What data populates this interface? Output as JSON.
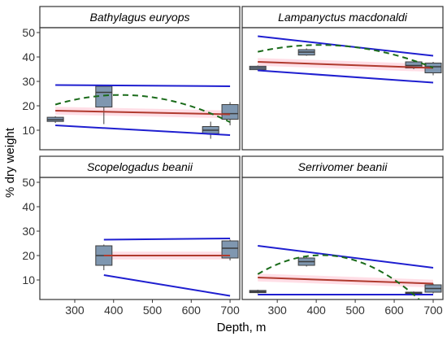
{
  "chart_data": {
    "type": "box",
    "layout": "facet-grid-2x2",
    "xlabel": "Depth, m",
    "ylabel": "% dry weight",
    "shared_axes": true,
    "xlim": [
      210,
      725
    ],
    "ylim": [
      2,
      52
    ],
    "xticks": [
      300,
      400,
      500,
      600,
      700
    ],
    "yticks": [
      10,
      20,
      30,
      40,
      50
    ],
    "colors": {
      "box_fill": "#7f97b0",
      "box_edge": "#3c3c3c",
      "envelope": "#1f1fd0",
      "linear_fit": "#b03a2e",
      "linear_band": "#ffd6e0",
      "quadratic_fit": "#1a6b1a",
      "strip_fill": "#ffffff",
      "axis": "#333333"
    },
    "panels": [
      {
        "title": "Bathylagus euryops",
        "boxes": [
          {
            "depth": 250,
            "q1": 13.6,
            "median": 14.3,
            "q3": 15.3,
            "whisker_low": 13.0,
            "whisker_high": 15.7
          },
          {
            "depth": 375,
            "q1": 19.5,
            "median": 25.5,
            "q3": 28.0,
            "whisker_low": 12.5,
            "whisker_high": 28.0
          },
          {
            "depth": 650,
            "q1": 8.6,
            "median": 10.0,
            "q3": 11.5,
            "whisker_low": 6.5,
            "whisker_high": 13.5
          },
          {
            "depth": 700,
            "q1": 14.5,
            "median": 16.8,
            "q3": 20.5,
            "whisker_low": 12.0,
            "whisker_high": 21.5
          }
        ],
        "envelope_upper": [
          [
            250,
            28.5
          ],
          [
            700,
            28.0
          ]
        ],
        "envelope_lower": [
          [
            250,
            12.0
          ],
          [
            700,
            8.0
          ]
        ],
        "linear_fit": [
          [
            250,
            18.0
          ],
          [
            700,
            16.5
          ]
        ],
        "quadratic_fit": {
          "a": -0.00015,
          "b": 0.117,
          "c": -0.00014
        }
      },
      {
        "title": "Lampanyctus macdonaldi",
        "boxes": [
          {
            "depth": 250,
            "q1": 34.8,
            "median": 35.5,
            "q3": 36.2,
            "whisker_low": 34.5,
            "whisker_high": 36.5
          },
          {
            "depth": 375,
            "q1": 40.8,
            "median": 42.0,
            "q3": 43.0,
            "whisker_low": 40.5,
            "whisker_high": 43.5
          },
          {
            "depth": 650,
            "q1": 35.5,
            "median": 36.5,
            "q3": 38.0,
            "whisker_low": 35.0,
            "whisker_high": 38.5
          },
          {
            "depth": 700,
            "q1": 33.5,
            "median": 36.0,
            "q3": 37.5,
            "whisker_low": 32.5,
            "whisker_high": 38.0
          }
        ],
        "envelope_upper": [
          [
            250,
            48.5
          ],
          [
            700,
            40.5
          ]
        ],
        "envelope_lower": [
          [
            250,
            34.5
          ],
          [
            700,
            29.5
          ]
        ],
        "linear_fit": [
          [
            250,
            38.0
          ],
          [
            700,
            35.5
          ]
        ],
        "quadratic_fit": {
          "a": 26.5,
          "b": 0.09,
          "c": -0.00011
        }
      },
      {
        "title": "Scopelogadus beanii",
        "boxes": [
          {
            "depth": 375,
            "q1": 16.0,
            "median": 20.0,
            "q3": 24.0,
            "whisker_low": 14.0,
            "whisker_high": 24.5
          },
          {
            "depth": 700,
            "q1": 19.0,
            "median": 23.0,
            "q3": 26.0,
            "whisker_low": 18.0,
            "whisker_high": 26.5
          }
        ],
        "envelope_upper": [
          [
            375,
            26.5
          ],
          [
            700,
            27.0
          ]
        ],
        "envelope_lower": [
          [
            375,
            12.0
          ],
          [
            700,
            3.5
          ]
        ],
        "linear_fit": [
          [
            375,
            20.0
          ],
          [
            700,
            20.0
          ]
        ],
        "quadratic_fit": null
      },
      {
        "title": "Serrivomer beanii",
        "boxes": [
          {
            "depth": 250,
            "q1": 4.8,
            "median": 5.2,
            "q3": 5.7,
            "whisker_low": 4.5,
            "whisker_high": 6.0
          },
          {
            "depth": 375,
            "q1": 16.0,
            "median": 17.5,
            "q3": 19.0,
            "whisker_low": 15.5,
            "whisker_high": 19.5
          },
          {
            "depth": 650,
            "q1": 4.2,
            "median": 4.6,
            "q3": 5.0,
            "whisker_low": 4.0,
            "whisker_high": 5.3
          },
          {
            "depth": 700,
            "q1": 5.0,
            "median": 6.5,
            "q3": 8.0,
            "whisker_low": 4.5,
            "whisker_high": 8.5
          }
        ],
        "envelope_upper": [
          [
            250,
            24.0
          ],
          [
            700,
            15.0
          ]
        ],
        "envelope_lower": [
          [
            250,
            4.0
          ],
          [
            700,
            4.0
          ]
        ],
        "linear_fit": [
          [
            250,
            11.0
          ],
          [
            700,
            8.5
          ]
        ],
        "quadratic_fit": {
          "a": -29.5,
          "b": 0.24,
          "c": -0.00029
        }
      }
    ]
  }
}
